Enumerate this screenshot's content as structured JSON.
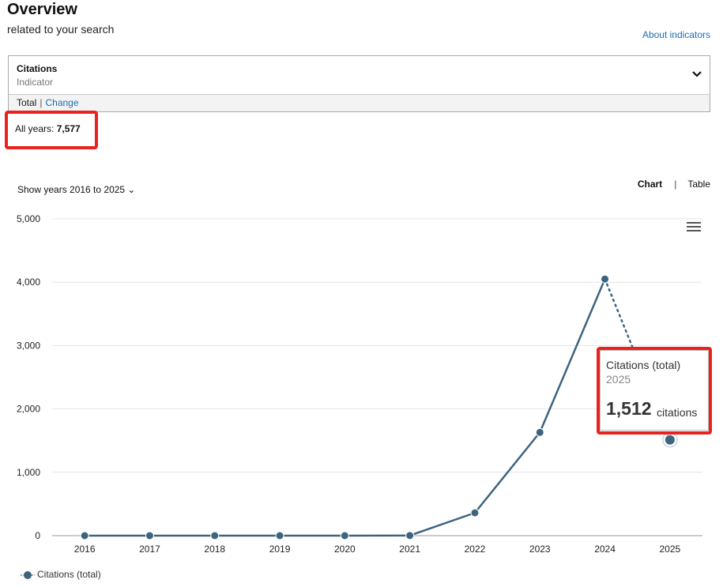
{
  "header": {
    "title": "Overview",
    "subtitle": "related to your search",
    "about_link": "About indicators"
  },
  "indicator": {
    "title": "Citations",
    "subtitle": "Indicator",
    "chevron_icon": "chevron-down-icon"
  },
  "total_bar": {
    "total_label": "Total",
    "change_label": "Change"
  },
  "summary": {
    "all_years_label": "All years:",
    "all_years_value": "7,577"
  },
  "controls": {
    "show_years": "Show years 2016 to 2025 ⌄",
    "chart_tab": "Chart",
    "table_tab": "Table",
    "menu_icon": "hamburger-menu-icon"
  },
  "colors": {
    "series": "#3d647f",
    "highlight": "#e8231f",
    "link": "#1a6fb5"
  },
  "chart_data": {
    "type": "line",
    "x": [
      "2016",
      "2017",
      "2018",
      "2019",
      "2020",
      "2021",
      "2022",
      "2023",
      "2024",
      "2025"
    ],
    "series": [
      {
        "name": "Citations (total)",
        "values": [
          0,
          0,
          0,
          0,
          0,
          2,
          360,
          1630,
          4050,
          1512
        ]
      }
    ],
    "yticks": [
      "0",
      "1,000",
      "2,000",
      "3,000",
      "4,000",
      "5,000"
    ],
    "ylim": [
      0,
      5000
    ],
    "partial_last_point": true,
    "grid": true,
    "legend": "bottom-left"
  },
  "tooltip": {
    "series_name": "Citations (total)",
    "year": "2025",
    "value": "1,512",
    "unit": "citations"
  },
  "legend": {
    "label": "Citations (total)"
  }
}
